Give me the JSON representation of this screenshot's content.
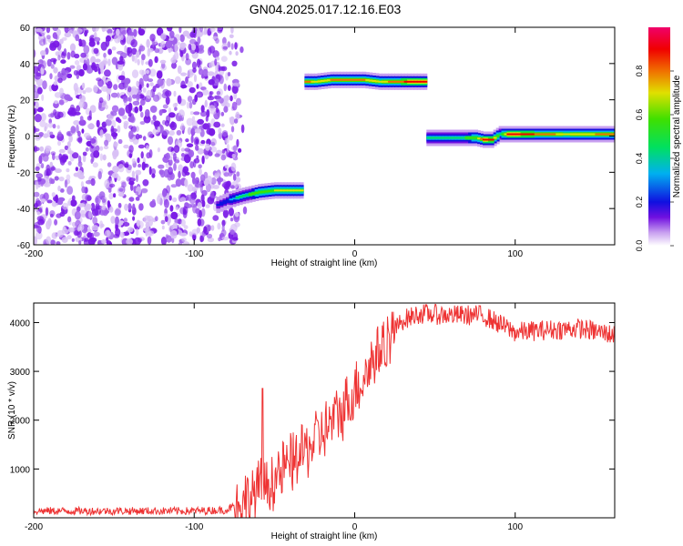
{
  "figure": {
    "title": "GN04.2025.017.12.16.E03"
  },
  "chart_data": [
    {
      "type": "heatmap",
      "title": "GN04.2025.017.12.16.E03",
      "xlabel": "Height of straight line (km)",
      "ylabel": "Frequency (Hz)",
      "xlim": [
        -200,
        162
      ],
      "ylim": [
        -60,
        60
      ],
      "x_ticks": [
        -200,
        -100,
        0,
        100
      ],
      "y_ticks": [
        -60,
        -40,
        -20,
        0,
        20,
        40,
        60
      ],
      "noise_region": {
        "x_range": [
          -200,
          -72
        ],
        "y_range": [
          -60,
          60
        ],
        "level": 0.12
      },
      "tracks": [
        {
          "x": [
            -86,
            -78,
            -70,
            -60,
            -50,
            -40,
            -32
          ],
          "frequency": [
            -38,
            -35,
            -33,
            -31,
            -30,
            -30,
            -30
          ],
          "amplitude": [
            0.2,
            0.35,
            0.55,
            0.65,
            0.7,
            0.7,
            0.7
          ]
        },
        {
          "x": [
            -31,
            -25,
            -15,
            -5,
            5,
            15,
            25,
            35,
            45
          ],
          "frequency": [
            30,
            30,
            31,
            31,
            31,
            30,
            30,
            30,
            30
          ],
          "amplitude": [
            0.85,
            0.75,
            0.8,
            0.85,
            0.8,
            0.75,
            0.85,
            0.95,
            0.95
          ]
        },
        {
          "x": [
            45,
            55,
            65,
            75,
            80,
            85,
            90,
            95,
            110,
            130,
            150,
            162
          ],
          "frequency": [
            -1,
            -1,
            -1,
            -1,
            -2,
            -2,
            1,
            1,
            1,
            1,
            1,
            1
          ],
          "amplitude": [
            0.5,
            0.55,
            0.55,
            0.65,
            0.95,
            0.9,
            0.5,
            0.95,
            0.9,
            0.75,
            0.8,
            0.85
          ]
        }
      ],
      "colorbar": {
        "label": "Normalized spectral amplitude",
        "range": [
          0,
          1
        ],
        "ticks": [
          0.0,
          0.2,
          0.4,
          0.6,
          0.8
        ]
      }
    },
    {
      "type": "line",
      "xlabel": "Height of straight line (km)",
      "ylabel": "SNR (10 * v/v)",
      "xlim": [
        -200,
        162
      ],
      "ylim": [
        0,
        4400
      ],
      "x_ticks": [
        -200,
        -100,
        0,
        100
      ],
      "y_ticks": [
        1000,
        2000,
        3000,
        4000
      ],
      "color": "#ee3333",
      "series": [
        {
          "x": [
            -200,
            -150,
            -100,
            -80,
            -70,
            -65,
            -60,
            -55,
            -50,
            -40,
            -30,
            -20,
            -10,
            0,
            10,
            20,
            30,
            40,
            60,
            80,
            100,
            120,
            140,
            162
          ],
          "values": [
            140,
            140,
            140,
            160,
            320,
            420,
            560,
            650,
            800,
            1100,
            1400,
            1750,
            2100,
            2600,
            3150,
            3650,
            4050,
            4180,
            4150,
            4150,
            3800,
            3850,
            3880,
            3750
          ]
        }
      ]
    }
  ]
}
